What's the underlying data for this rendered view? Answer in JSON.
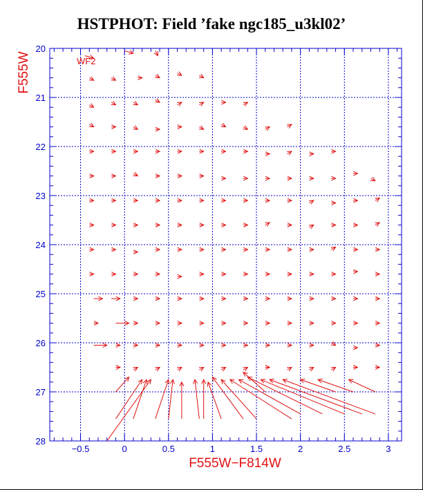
{
  "title": "HSTPHOT: Field ’fake ngc185_u3kl02’",
  "chart_data": {
    "type": "scatter",
    "title": "HSTPHOT: Field ’fake ngc185_u3kl02’",
    "xlabel": "F555W−F814W",
    "ylabel": "F555W",
    "panel_label": "WF2",
    "xlim": [
      -0.85,
      3.15
    ],
    "ylim": [
      28,
      20
    ],
    "y_inverted": true,
    "grid": true,
    "xticks": [
      -0.5,
      0,
      0.5,
      1,
      1.5,
      2,
      2.5,
      3
    ],
    "xtick_labels": [
      "−0.5",
      "0",
      "0.5",
      "1",
      "1.5",
      "2",
      "2.5",
      "3"
    ],
    "yticks": [
      20,
      21,
      22,
      23,
      24,
      25,
      26,
      27,
      28
    ],
    "ytick_labels": [
      "20",
      "21",
      "22",
      "23",
      "24",
      "25",
      "26",
      "27",
      "28"
    ],
    "colors": {
      "axes": "#0000cc",
      "grid": "#0000cc",
      "arrows": "#e01010",
      "title": "#000000"
    },
    "note_arrows": "Each vector runs from input (x0,y0) to recovered (x1,y1) position in color–magnitude space.",
    "arrows": [
      {
        "x0": -0.45,
        "y0": 20.15,
        "x1": -0.35,
        "y1": 20.2
      },
      {
        "x0": 0.0,
        "y0": 20.05,
        "x1": 0.1,
        "y1": 20.1
      },
      {
        "x0": 0.35,
        "y0": 20.05,
        "x1": 0.38,
        "y1": 20.15
      },
      {
        "x0": -0.4,
        "y0": 20.6,
        "x1": -0.35,
        "y1": 20.65
      },
      {
        "x0": -0.15,
        "y0": 20.6,
        "x1": -0.1,
        "y1": 20.65
      },
      {
        "x0": 0.15,
        "y0": 20.6,
        "x1": 0.2,
        "y1": 20.6
      },
      {
        "x0": 0.35,
        "y0": 20.55,
        "x1": 0.4,
        "y1": 20.6
      },
      {
        "x0": 0.6,
        "y0": 20.5,
        "x1": 0.65,
        "y1": 20.55
      },
      {
        "x0": 0.85,
        "y0": 20.55,
        "x1": 0.9,
        "y1": 20.6
      },
      {
        "x0": -0.4,
        "y0": 21.15,
        "x1": -0.35,
        "y1": 21.2
      },
      {
        "x0": -0.15,
        "y0": 21.1,
        "x1": -0.1,
        "y1": 21.15
      },
      {
        "x0": 0.1,
        "y0": 21.1,
        "x1": 0.15,
        "y1": 21.15
      },
      {
        "x0": 0.35,
        "y0": 21.05,
        "x1": 0.4,
        "y1": 21.1
      },
      {
        "x0": 0.6,
        "y0": 21.15,
        "x1": 0.65,
        "y1": 21.1
      },
      {
        "x0": 0.85,
        "y0": 21.15,
        "x1": 0.9,
        "y1": 21.1
      },
      {
        "x0": 1.1,
        "y0": 21.1,
        "x1": 1.15,
        "y1": 21.1
      },
      {
        "x0": 1.35,
        "y0": 21.15,
        "x1": 1.4,
        "y1": 21.1
      },
      {
        "x0": -0.4,
        "y0": 21.55,
        "x1": -0.35,
        "y1": 21.6
      },
      {
        "x0": -0.15,
        "y0": 21.6,
        "x1": -0.1,
        "y1": 21.6
      },
      {
        "x0": 0.1,
        "y0": 21.6,
        "x1": 0.15,
        "y1": 21.65
      },
      {
        "x0": 0.35,
        "y0": 21.65,
        "x1": 0.4,
        "y1": 21.65
      },
      {
        "x0": 0.6,
        "y0": 21.6,
        "x1": 0.65,
        "y1": 21.6
      },
      {
        "x0": 0.85,
        "y0": 21.6,
        "x1": 0.9,
        "y1": 21.65
      },
      {
        "x0": 1.1,
        "y0": 21.55,
        "x1": 1.15,
        "y1": 21.6
      },
      {
        "x0": 1.35,
        "y0": 21.6,
        "x1": 1.4,
        "y1": 21.65
      },
      {
        "x0": 1.6,
        "y0": 21.65,
        "x1": 1.65,
        "y1": 21.6
      },
      {
        "x0": 1.85,
        "y0": 21.6,
        "x1": 1.9,
        "y1": 21.55
      },
      {
        "x0": -0.4,
        "y0": 22.1,
        "x1": -0.35,
        "y1": 22.1
      },
      {
        "x0": -0.15,
        "y0": 22.1,
        "x1": -0.1,
        "y1": 22.1
      },
      {
        "x0": 0.1,
        "y0": 22.1,
        "x1": 0.15,
        "y1": 22.1
      },
      {
        "x0": 0.35,
        "y0": 22.1,
        "x1": 0.4,
        "y1": 22.1
      },
      {
        "x0": 0.6,
        "y0": 22.1,
        "x1": 0.65,
        "y1": 22.1
      },
      {
        "x0": 0.85,
        "y0": 22.1,
        "x1": 0.9,
        "y1": 22.1
      },
      {
        "x0": 1.1,
        "y0": 22.1,
        "x1": 1.15,
        "y1": 22.1
      },
      {
        "x0": 1.35,
        "y0": 22.1,
        "x1": 1.4,
        "y1": 22.1
      },
      {
        "x0": 1.6,
        "y0": 22.15,
        "x1": 1.65,
        "y1": 22.15
      },
      {
        "x0": 1.85,
        "y0": 22.15,
        "x1": 1.9,
        "y1": 22.1
      },
      {
        "x0": 2.1,
        "y0": 22.15,
        "x1": 2.15,
        "y1": 22.15
      },
      {
        "x0": 2.35,
        "y0": 22.1,
        "x1": 2.4,
        "y1": 22.1
      },
      {
        "x0": -0.4,
        "y0": 22.6,
        "x1": -0.35,
        "y1": 22.6
      },
      {
        "x0": -0.15,
        "y0": 22.6,
        "x1": -0.1,
        "y1": 22.6
      },
      {
        "x0": 0.1,
        "y0": 22.55,
        "x1": 0.15,
        "y1": 22.6
      },
      {
        "x0": 0.35,
        "y0": 22.6,
        "x1": 0.4,
        "y1": 22.6
      },
      {
        "x0": 0.6,
        "y0": 22.6,
        "x1": 0.65,
        "y1": 22.6
      },
      {
        "x0": 0.85,
        "y0": 22.6,
        "x1": 0.9,
        "y1": 22.6
      },
      {
        "x0": 1.1,
        "y0": 22.65,
        "x1": 1.15,
        "y1": 22.65
      },
      {
        "x0": 1.35,
        "y0": 22.65,
        "x1": 1.4,
        "y1": 22.65
      },
      {
        "x0": 1.6,
        "y0": 22.65,
        "x1": 1.65,
        "y1": 22.65
      },
      {
        "x0": 1.85,
        "y0": 22.65,
        "x1": 1.9,
        "y1": 22.65
      },
      {
        "x0": 2.1,
        "y0": 22.65,
        "x1": 2.15,
        "y1": 22.65
      },
      {
        "x0": 2.35,
        "y0": 22.65,
        "x1": 2.4,
        "y1": 22.65
      },
      {
        "x0": 2.6,
        "y0": 22.55,
        "x1": 2.65,
        "y1": 22.55
      },
      {
        "x0": 2.8,
        "y0": 22.65,
        "x1": 2.85,
        "y1": 22.7
      },
      {
        "x0": -0.4,
        "y0": 23.1,
        "x1": -0.35,
        "y1": 23.1
      },
      {
        "x0": -0.15,
        "y0": 23.1,
        "x1": -0.1,
        "y1": 23.1
      },
      {
        "x0": 0.1,
        "y0": 23.1,
        "x1": 0.15,
        "y1": 23.1
      },
      {
        "x0": 0.35,
        "y0": 23.1,
        "x1": 0.4,
        "y1": 23.1
      },
      {
        "x0": 0.6,
        "y0": 23.1,
        "x1": 0.65,
        "y1": 23.1
      },
      {
        "x0": 0.85,
        "y0": 23.1,
        "x1": 0.9,
        "y1": 23.1
      },
      {
        "x0": 1.1,
        "y0": 23.1,
        "x1": 1.15,
        "y1": 23.1
      },
      {
        "x0": 1.35,
        "y0": 23.1,
        "x1": 1.4,
        "y1": 23.1
      },
      {
        "x0": 1.6,
        "y0": 23.1,
        "x1": 1.65,
        "y1": 23.1
      },
      {
        "x0": 1.85,
        "y0": 23.1,
        "x1": 1.9,
        "y1": 23.1
      },
      {
        "x0": 2.1,
        "y0": 23.15,
        "x1": 2.15,
        "y1": 23.1
      },
      {
        "x0": 2.35,
        "y0": 23.15,
        "x1": 2.4,
        "y1": 23.15
      },
      {
        "x0": 2.6,
        "y0": 23.1,
        "x1": 2.65,
        "y1": 23.1
      },
      {
        "x0": 2.85,
        "y0": 23.1,
        "x1": 2.9,
        "y1": 23.05
      },
      {
        "x0": -0.4,
        "y0": 23.6,
        "x1": -0.35,
        "y1": 23.6
      },
      {
        "x0": -0.15,
        "y0": 23.6,
        "x1": -0.1,
        "y1": 23.6
      },
      {
        "x0": 0.1,
        "y0": 23.6,
        "x1": 0.15,
        "y1": 23.6
      },
      {
        "x0": 0.35,
        "y0": 23.6,
        "x1": 0.4,
        "y1": 23.6
      },
      {
        "x0": 0.6,
        "y0": 23.6,
        "x1": 0.65,
        "y1": 23.6
      },
      {
        "x0": 0.85,
        "y0": 23.6,
        "x1": 0.9,
        "y1": 23.6
      },
      {
        "x0": 1.1,
        "y0": 23.6,
        "x1": 1.15,
        "y1": 23.6
      },
      {
        "x0": 1.35,
        "y0": 23.6,
        "x1": 1.4,
        "y1": 23.6
      },
      {
        "x0": 1.6,
        "y0": 23.6,
        "x1": 1.65,
        "y1": 23.55
      },
      {
        "x0": 1.85,
        "y0": 23.6,
        "x1": 1.9,
        "y1": 23.6
      },
      {
        "x0": 2.1,
        "y0": 23.65,
        "x1": 2.15,
        "y1": 23.6
      },
      {
        "x0": 2.35,
        "y0": 23.6,
        "x1": 2.4,
        "y1": 23.6
      },
      {
        "x0": 2.6,
        "y0": 23.6,
        "x1": 2.65,
        "y1": 23.6
      },
      {
        "x0": 2.85,
        "y0": 23.6,
        "x1": 2.9,
        "y1": 23.55
      },
      {
        "x0": -0.4,
        "y0": 24.1,
        "x1": -0.35,
        "y1": 24.1
      },
      {
        "x0": -0.15,
        "y0": 24.1,
        "x1": -0.1,
        "y1": 24.1
      },
      {
        "x0": 0.1,
        "y0": 24.15,
        "x1": 0.15,
        "y1": 24.15
      },
      {
        "x0": 0.35,
        "y0": 24.1,
        "x1": 0.4,
        "y1": 24.1
      },
      {
        "x0": 0.6,
        "y0": 24.1,
        "x1": 0.65,
        "y1": 24.1
      },
      {
        "x0": 0.85,
        "y0": 24.1,
        "x1": 0.9,
        "y1": 24.1
      },
      {
        "x0": 1.1,
        "y0": 24.1,
        "x1": 1.15,
        "y1": 24.1
      },
      {
        "x0": 1.35,
        "y0": 24.1,
        "x1": 1.4,
        "y1": 24.1
      },
      {
        "x0": 1.6,
        "y0": 24.1,
        "x1": 1.65,
        "y1": 24.1
      },
      {
        "x0": 1.85,
        "y0": 24.1,
        "x1": 1.9,
        "y1": 24.1
      },
      {
        "x0": 2.1,
        "y0": 24.1,
        "x1": 2.15,
        "y1": 24.1
      },
      {
        "x0": 2.35,
        "y0": 24.1,
        "x1": 2.4,
        "y1": 24.05
      },
      {
        "x0": 2.6,
        "y0": 24.1,
        "x1": 2.65,
        "y1": 24.1
      },
      {
        "x0": 2.85,
        "y0": 24.1,
        "x1": 2.9,
        "y1": 24.1
      },
      {
        "x0": -0.4,
        "y0": 24.6,
        "x1": -0.35,
        "y1": 24.6
      },
      {
        "x0": -0.15,
        "y0": 24.6,
        "x1": -0.1,
        "y1": 24.6
      },
      {
        "x0": 0.1,
        "y0": 24.6,
        "x1": 0.15,
        "y1": 24.6
      },
      {
        "x0": 0.35,
        "y0": 24.6,
        "x1": 0.4,
        "y1": 24.6
      },
      {
        "x0": 0.6,
        "y0": 24.65,
        "x1": 0.65,
        "y1": 24.65
      },
      {
        "x0": 0.85,
        "y0": 24.6,
        "x1": 0.9,
        "y1": 24.6
      },
      {
        "x0": 1.1,
        "y0": 24.6,
        "x1": 1.15,
        "y1": 24.6
      },
      {
        "x0": 1.35,
        "y0": 24.6,
        "x1": 1.4,
        "y1": 24.6
      },
      {
        "x0": 1.6,
        "y0": 24.6,
        "x1": 1.65,
        "y1": 24.6
      },
      {
        "x0": 1.85,
        "y0": 24.6,
        "x1": 1.9,
        "y1": 24.6
      },
      {
        "x0": 2.1,
        "y0": 24.6,
        "x1": 2.15,
        "y1": 24.6
      },
      {
        "x0": 2.35,
        "y0": 24.6,
        "x1": 2.4,
        "y1": 24.6
      },
      {
        "x0": 2.6,
        "y0": 24.55,
        "x1": 2.65,
        "y1": 24.55
      },
      {
        "x0": 2.85,
        "y0": 24.6,
        "x1": 2.9,
        "y1": 24.6
      },
      {
        "x0": -0.35,
        "y0": 25.1,
        "x1": -0.25,
        "y1": 25.1
      },
      {
        "x0": -0.15,
        "y0": 25.1,
        "x1": -0.05,
        "y1": 25.1
      },
      {
        "x0": 0.1,
        "y0": 25.1,
        "x1": 0.15,
        "y1": 25.1
      },
      {
        "x0": 0.35,
        "y0": 25.1,
        "x1": 0.4,
        "y1": 25.1
      },
      {
        "x0": 0.6,
        "y0": 25.1,
        "x1": 0.65,
        "y1": 25.1
      },
      {
        "x0": 0.85,
        "y0": 25.1,
        "x1": 0.9,
        "y1": 25.1
      },
      {
        "x0": 1.1,
        "y0": 25.1,
        "x1": 1.15,
        "y1": 25.1
      },
      {
        "x0": 1.35,
        "y0": 25.1,
        "x1": 1.4,
        "y1": 25.1
      },
      {
        "x0": 1.6,
        "y0": 25.1,
        "x1": 1.65,
        "y1": 25.1
      },
      {
        "x0": 1.85,
        "y0": 25.1,
        "x1": 1.9,
        "y1": 25.1
      },
      {
        "x0": 2.1,
        "y0": 25.1,
        "x1": 2.15,
        "y1": 25.1
      },
      {
        "x0": 2.35,
        "y0": 25.1,
        "x1": 2.4,
        "y1": 25.1
      },
      {
        "x0": 2.6,
        "y0": 25.1,
        "x1": 2.65,
        "y1": 25.1
      },
      {
        "x0": 2.85,
        "y0": 25.1,
        "x1": 2.9,
        "y1": 25.1
      },
      {
        "x0": -0.35,
        "y0": 25.6,
        "x1": -0.3,
        "y1": 25.6
      },
      {
        "x0": -0.1,
        "y0": 25.6,
        "x1": 0.05,
        "y1": 25.6
      },
      {
        "x0": 0.1,
        "y0": 25.6,
        "x1": 0.15,
        "y1": 25.6
      },
      {
        "x0": 0.35,
        "y0": 25.6,
        "x1": 0.4,
        "y1": 25.6
      },
      {
        "x0": 0.6,
        "y0": 25.6,
        "x1": 0.65,
        "y1": 25.6
      },
      {
        "x0": 0.85,
        "y0": 25.6,
        "x1": 0.9,
        "y1": 25.6
      },
      {
        "x0": 1.1,
        "y0": 25.6,
        "x1": 1.15,
        "y1": 25.6
      },
      {
        "x0": 1.35,
        "y0": 25.6,
        "x1": 1.4,
        "y1": 25.6
      },
      {
        "x0": 1.6,
        "y0": 25.6,
        "x1": 1.65,
        "y1": 25.6
      },
      {
        "x0": 1.85,
        "y0": 25.6,
        "x1": 1.9,
        "y1": 25.6
      },
      {
        "x0": 2.1,
        "y0": 25.6,
        "x1": 2.15,
        "y1": 25.6
      },
      {
        "x0": 2.35,
        "y0": 25.6,
        "x1": 2.4,
        "y1": 25.6
      },
      {
        "x0": 2.6,
        "y0": 25.6,
        "x1": 2.65,
        "y1": 25.6
      },
      {
        "x0": 2.85,
        "y0": 25.6,
        "x1": 2.9,
        "y1": 25.6
      },
      {
        "x0": -0.35,
        "y0": 26.05,
        "x1": -0.2,
        "y1": 26.05
      },
      {
        "x0": -0.1,
        "y0": 26.05,
        "x1": -0.05,
        "y1": 26.05
      },
      {
        "x0": 0.1,
        "y0": 26.05,
        "x1": 0.15,
        "y1": 26.05
      },
      {
        "x0": 0.35,
        "y0": 26.05,
        "x1": 0.4,
        "y1": 26.05
      },
      {
        "x0": 0.6,
        "y0": 26.05,
        "x1": 0.65,
        "y1": 26.05
      },
      {
        "x0": 0.85,
        "y0": 26.05,
        "x1": 0.9,
        "y1": 26.05
      },
      {
        "x0": 1.1,
        "y0": 26.05,
        "x1": 1.15,
        "y1": 26.05
      },
      {
        "x0": 1.35,
        "y0": 26.05,
        "x1": 1.4,
        "y1": 26.05
      },
      {
        "x0": 1.6,
        "y0": 26.05,
        "x1": 1.65,
        "y1": 26.05
      },
      {
        "x0": 1.85,
        "y0": 26.05,
        "x1": 1.9,
        "y1": 26.05
      },
      {
        "x0": 2.1,
        "y0": 26.05,
        "x1": 2.15,
        "y1": 26.05
      },
      {
        "x0": 2.35,
        "y0": 26.0,
        "x1": 2.4,
        "y1": 26.05
      },
      {
        "x0": 2.6,
        "y0": 26.1,
        "x1": 2.65,
        "y1": 26.1
      },
      {
        "x0": 2.85,
        "y0": 26.05,
        "x1": 2.9,
        "y1": 26.05
      },
      {
        "x0": -0.1,
        "y0": 26.5,
        "x1": -0.05,
        "y1": 26.5
      },
      {
        "x0": 0.1,
        "y0": 26.55,
        "x1": 0.15,
        "y1": 26.5
      },
      {
        "x0": 0.35,
        "y0": 26.55,
        "x1": 0.4,
        "y1": 26.5
      },
      {
        "x0": 0.6,
        "y0": 26.55,
        "x1": 0.65,
        "y1": 26.5
      },
      {
        "x0": 0.85,
        "y0": 26.55,
        "x1": 0.9,
        "y1": 26.5
      },
      {
        "x0": 1.1,
        "y0": 26.55,
        "x1": 1.15,
        "y1": 26.5
      },
      {
        "x0": 1.35,
        "y0": 26.55,
        "x1": 1.4,
        "y1": 26.5
      },
      {
        "x0": 1.6,
        "y0": 26.5,
        "x1": 1.65,
        "y1": 26.5
      },
      {
        "x0": 1.85,
        "y0": 26.55,
        "x1": 1.9,
        "y1": 26.5
      },
      {
        "x0": 2.1,
        "y0": 26.55,
        "x1": 2.15,
        "y1": 26.5
      },
      {
        "x0": 2.35,
        "y0": 26.55,
        "x1": 2.4,
        "y1": 26.5
      },
      {
        "x0": 2.6,
        "y0": 26.5,
        "x1": 2.65,
        "y1": 26.5
      },
      {
        "x0": 2.85,
        "y0": 26.5,
        "x1": 2.9,
        "y1": 26.5
      },
      {
        "x0": -0.1,
        "y0": 27.0,
        "x1": 0.05,
        "y1": 26.7
      },
      {
        "x0": -0.1,
        "y0": 27.55,
        "x1": 0.2,
        "y1": 26.75
      },
      {
        "x0": 0.1,
        "y0": 27.55,
        "x1": 0.25,
        "y1": 26.75
      },
      {
        "x0": -0.2,
        "y0": 28.0,
        "x1": 0.3,
        "y1": 26.75
      },
      {
        "x0": 0.35,
        "y0": 27.55,
        "x1": 0.5,
        "y1": 26.75
      },
      {
        "x0": 0.5,
        "y0": 27.55,
        "x1": 0.55,
        "y1": 26.75
      },
      {
        "x0": 0.65,
        "y0": 27.55,
        "x1": 0.65,
        "y1": 26.8
      },
      {
        "x0": 0.85,
        "y0": 27.55,
        "x1": 0.8,
        "y1": 26.75
      },
      {
        "x0": 0.9,
        "y0": 27.55,
        "x1": 0.9,
        "y1": 26.75
      },
      {
        "x0": 1.1,
        "y0": 27.55,
        "x1": 0.95,
        "y1": 26.8
      },
      {
        "x0": 1.35,
        "y0": 27.55,
        "x1": 1.0,
        "y1": 26.7
      },
      {
        "x0": 1.5,
        "y0": 27.55,
        "x1": 1.1,
        "y1": 26.75
      },
      {
        "x0": 1.9,
        "y0": 27.55,
        "x1": 1.2,
        "y1": 26.75
      },
      {
        "x0": 2.0,
        "y0": 27.45,
        "x1": 1.3,
        "y1": 26.75
      },
      {
        "x0": 2.25,
        "y0": 27.45,
        "x1": 1.4,
        "y1": 26.7
      },
      {
        "x0": 2.5,
        "y0": 27.45,
        "x1": 1.55,
        "y1": 26.75
      },
      {
        "x0": 2.7,
        "y0": 27.45,
        "x1": 1.65,
        "y1": 26.75
      },
      {
        "x0": 2.85,
        "y0": 27.45,
        "x1": 1.8,
        "y1": 26.75
      },
      {
        "x0": 2.4,
        "y0": 27.0,
        "x1": 2.0,
        "y1": 26.75
      },
      {
        "x0": 2.6,
        "y0": 27.0,
        "x1": 2.2,
        "y1": 26.75
      },
      {
        "x0": 2.85,
        "y0": 27.0,
        "x1": 2.55,
        "y1": 26.75
      },
      {
        "x0": 1.6,
        "y0": 27.0,
        "x1": 1.35,
        "y1": 26.6
      }
    ]
  }
}
